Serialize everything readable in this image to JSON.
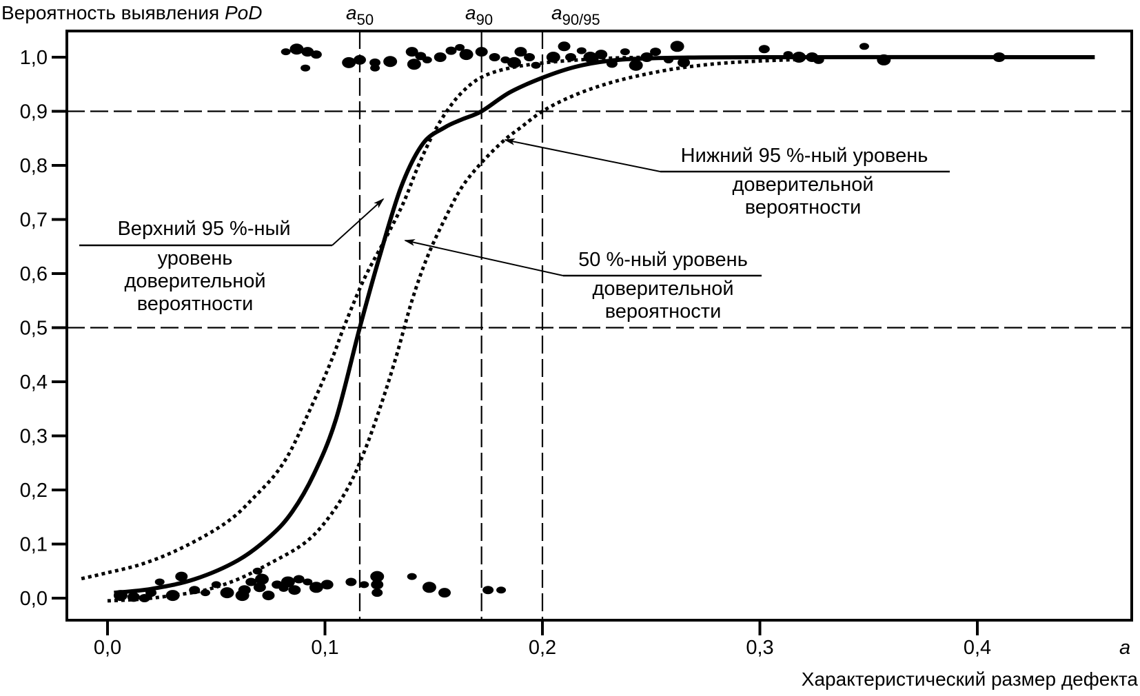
{
  "chart_data": {
    "type": "line",
    "title": "",
    "ylabel": "Вероятность выявления",
    "ylabel_symbol": "PoD",
    "xlabel": "Характеристический размер дефекта",
    "xlabel_symbol": "a",
    "xlim": [
      -0.015,
      0.475
    ],
    "ylim": [
      -0.04,
      1.05
    ],
    "grid": false,
    "x_ticks": [
      0.0,
      0.1,
      0.2,
      0.3,
      0.4
    ],
    "x_tick_labels": [
      "0,0",
      "0,1",
      "0,2",
      "0,3",
      "0,4"
    ],
    "y_ticks": [
      0.0,
      0.1,
      0.2,
      0.3,
      0.4,
      0.5,
      0.6,
      0.7,
      0.8,
      0.9,
      1.0
    ],
    "y_tick_labels": [
      "0,0",
      "0,1",
      "0,2",
      "0,3",
      "0,4",
      "0,5",
      "0,6",
      "0,7",
      "0,8",
      "0,9",
      "1,0"
    ],
    "reference_lines": {
      "horizontal": [
        {
          "name": "pod-0.9",
          "y": 0.9
        },
        {
          "name": "pod-0.5",
          "y": 0.5
        }
      ],
      "vertical": [
        {
          "name": "a50",
          "x": 0.116,
          "label_base": "a",
          "label_sub": "50"
        },
        {
          "name": "a90",
          "x": 0.172,
          "label_base": "a",
          "label_sub": "90"
        },
        {
          "name": "a90-95",
          "x": 0.2,
          "label_base": "a",
          "label_sub": "90/95"
        }
      ]
    },
    "series": [
      {
        "name": "50 %-ный уровень доверительной вероятности",
        "style": "solid",
        "points": [
          [
            0.003,
            0.01
          ],
          [
            0.02,
            0.017
          ],
          [
            0.04,
            0.035
          ],
          [
            0.06,
            0.07
          ],
          [
            0.075,
            0.115
          ],
          [
            0.085,
            0.16
          ],
          [
            0.095,
            0.23
          ],
          [
            0.105,
            0.33
          ],
          [
            0.116,
            0.5
          ],
          [
            0.125,
            0.63
          ],
          [
            0.135,
            0.76
          ],
          [
            0.145,
            0.84
          ],
          [
            0.155,
            0.87
          ],
          [
            0.163,
            0.885
          ],
          [
            0.172,
            0.9
          ],
          [
            0.185,
            0.935
          ],
          [
            0.2,
            0.962
          ],
          [
            0.215,
            0.982
          ],
          [
            0.23,
            0.993
          ],
          [
            0.25,
            0.998
          ],
          [
            0.3,
            1.0
          ],
          [
            0.454,
            1.0
          ]
        ]
      },
      {
        "name": "Верхний 95 %-ный уровень доверительной вероятности",
        "style": "dotted",
        "points": [
          [
            -0.012,
            0.036
          ],
          [
            0.0,
            0.047
          ],
          [
            0.015,
            0.062
          ],
          [
            0.03,
            0.085
          ],
          [
            0.046,
            0.118
          ],
          [
            0.058,
            0.15
          ],
          [
            0.068,
            0.189
          ],
          [
            0.077,
            0.228
          ],
          [
            0.084,
            0.271
          ],
          [
            0.091,
            0.33
          ],
          [
            0.098,
            0.392
          ],
          [
            0.104,
            0.45
          ],
          [
            0.109,
            0.504
          ],
          [
            0.118,
            0.59
          ],
          [
            0.128,
            0.666
          ],
          [
            0.136,
            0.73
          ],
          [
            0.143,
            0.8
          ],
          [
            0.15,
            0.86
          ],
          [
            0.156,
            0.9
          ],
          [
            0.163,
            0.935
          ],
          [
            0.172,
            0.963
          ],
          [
            0.185,
            0.98
          ],
          [
            0.204,
            0.991
          ],
          [
            0.23,
            0.998
          ],
          [
            0.25,
            1.0
          ]
        ]
      },
      {
        "name": "Нижний 95 %-ный уровень доверительной вероятности",
        "style": "dotted",
        "points": [
          [
            0.0,
            -0.005
          ],
          [
            0.015,
            -0.002
          ],
          [
            0.03,
            0.005
          ],
          [
            0.045,
            0.015
          ],
          [
            0.06,
            0.035
          ],
          [
            0.075,
            0.065
          ],
          [
            0.09,
            0.1
          ],
          [
            0.1,
            0.14
          ],
          [
            0.11,
            0.2
          ],
          [
            0.118,
            0.27
          ],
          [
            0.126,
            0.36
          ],
          [
            0.133,
            0.45
          ],
          [
            0.14,
            0.55
          ],
          [
            0.147,
            0.63
          ],
          [
            0.155,
            0.7
          ],
          [
            0.163,
            0.76
          ],
          [
            0.172,
            0.805
          ],
          [
            0.182,
            0.845
          ],
          [
            0.19,
            0.87
          ],
          [
            0.2,
            0.9
          ],
          [
            0.212,
            0.925
          ],
          [
            0.225,
            0.945
          ],
          [
            0.24,
            0.962
          ],
          [
            0.26,
            0.978
          ],
          [
            0.28,
            0.988
          ],
          [
            0.3,
            0.993
          ],
          [
            0.32,
            0.996
          ]
        ]
      }
    ],
    "observations": {
      "name": "hit-miss data",
      "points": [
        [
          0.082,
          1.01
        ],
        [
          0.087,
          1.015
        ],
        [
          0.092,
          1.01
        ],
        [
          0.096,
          1.005
        ],
        [
          0.091,
          0.98
        ],
        [
          0.111,
          0.99
        ],
        [
          0.116,
          0.995
        ],
        [
          0.123,
          0.99
        ],
        [
          0.123,
          0.98
        ],
        [
          0.13,
          0.992
        ],
        [
          0.14,
          1.01
        ],
        [
          0.144,
          1.002
        ],
        [
          0.147,
          0.995
        ],
        [
          0.141,
          0.987
        ],
        [
          0.153,
          1.0
        ],
        [
          0.158,
          1.012
        ],
        [
          0.162,
          1.018
        ],
        [
          0.165,
          1.005
        ],
        [
          0.172,
          1.01
        ],
        [
          0.178,
          1.0
        ],
        [
          0.183,
          0.995
        ],
        [
          0.187,
          0.99
        ],
        [
          0.19,
          1.01
        ],
        [
          0.194,
          1.0
        ],
        [
          0.197,
          0.985
        ],
        [
          0.205,
          1.0
        ],
        [
          0.21,
          1.02
        ],
        [
          0.213,
          1.0
        ],
        [
          0.218,
          1.012
        ],
        [
          0.222,
          1.0
        ],
        [
          0.227,
          1.005
        ],
        [
          0.232,
          0.988
        ],
        [
          0.238,
          1.01
        ],
        [
          0.243,
          0.985
        ],
        [
          0.248,
          1.0
        ],
        [
          0.252,
          1.01
        ],
        [
          0.258,
          0.995
        ],
        [
          0.262,
          1.02
        ],
        [
          0.265,
          0.99
        ],
        [
          0.302,
          1.015
        ],
        [
          0.313,
          1.005
        ],
        [
          0.318,
          1.0
        ],
        [
          0.324,
          1.0
        ],
        [
          0.327,
          0.995
        ],
        [
          0.348,
          1.02
        ],
        [
          0.357,
          0.995
        ],
        [
          0.41,
          1.0
        ],
        [
          0.02,
          0.01
        ],
        [
          0.024,
          0.03
        ],
        [
          0.03,
          0.005
        ],
        [
          0.034,
          0.04
        ],
        [
          0.04,
          0.015
        ],
        [
          0.05,
          0.025
        ],
        [
          0.055,
          0.01
        ],
        [
          0.063,
          0.015
        ],
        [
          0.066,
          0.03
        ],
        [
          0.069,
          0.05
        ],
        [
          0.071,
          0.035
        ],
        [
          0.074,
          0.005
        ],
        [
          0.078,
          0.025
        ],
        [
          0.081,
          0.018
        ],
        [
          0.083,
          0.03
        ],
        [
          0.086,
          0.015
        ],
        [
          0.088,
          0.035
        ],
        [
          0.092,
          0.03
        ],
        [
          0.096,
          0.02
        ],
        [
          0.101,
          0.025
        ],
        [
          0.112,
          0.03
        ],
        [
          0.118,
          0.025
        ],
        [
          0.124,
          0.04
        ],
        [
          0.124,
          0.025
        ],
        [
          0.124,
          0.01
        ],
        [
          0.14,
          0.04
        ],
        [
          0.148,
          0.02
        ],
        [
          0.155,
          0.01
        ],
        [
          0.175,
          0.015
        ],
        [
          0.181,
          0.015
        ],
        [
          0.006,
          0.005
        ],
        [
          0.012,
          0.002
        ],
        [
          0.017,
          0.0
        ],
        [
          0.045,
          0.01
        ],
        [
          0.062,
          0.005
        ],
        [
          0.07,
          0.02
        ]
      ]
    },
    "annotations": [
      {
        "name": "upper-95-label",
        "lines": [
          "Верхний 95 %-ный",
          "уровень",
          "доверительной",
          "вероятности"
        ],
        "points_to_series": "Верхний 95 %-ный уровень доверительной вероятности"
      },
      {
        "name": "median-label",
        "lines": [
          "50 %-ный уровень",
          "доверительной",
          "вероятности"
        ],
        "points_to_series": "50 %-ный уровень доверительной вероятности"
      },
      {
        "name": "lower-95-label",
        "lines": [
          "Нижний 95 %-ный уровень",
          "доверительной",
          "вероятности"
        ],
        "points_to_series": "Нижний 95 %-ный уровень доверительной вероятности"
      }
    ]
  },
  "labels": {
    "y_title": "Вероятность выявления ",
    "y_title_symbol": "PoD",
    "x_symbol": "a",
    "x_title": "Характеристический размер дефекта",
    "a_base": "a",
    "a50_sub": "50",
    "a90_sub": "90",
    "a9095_sub": "90/95",
    "upper": [
      "Верхний 95 %-ный",
      "уровень",
      "доверительной",
      "вероятности"
    ],
    "median": [
      "50 %-ный уровень",
      "доверительной",
      "вероятности"
    ],
    "lower": [
      "Нижний 95 %-ный уровень",
      "доверительной",
      "вероятности"
    ]
  }
}
